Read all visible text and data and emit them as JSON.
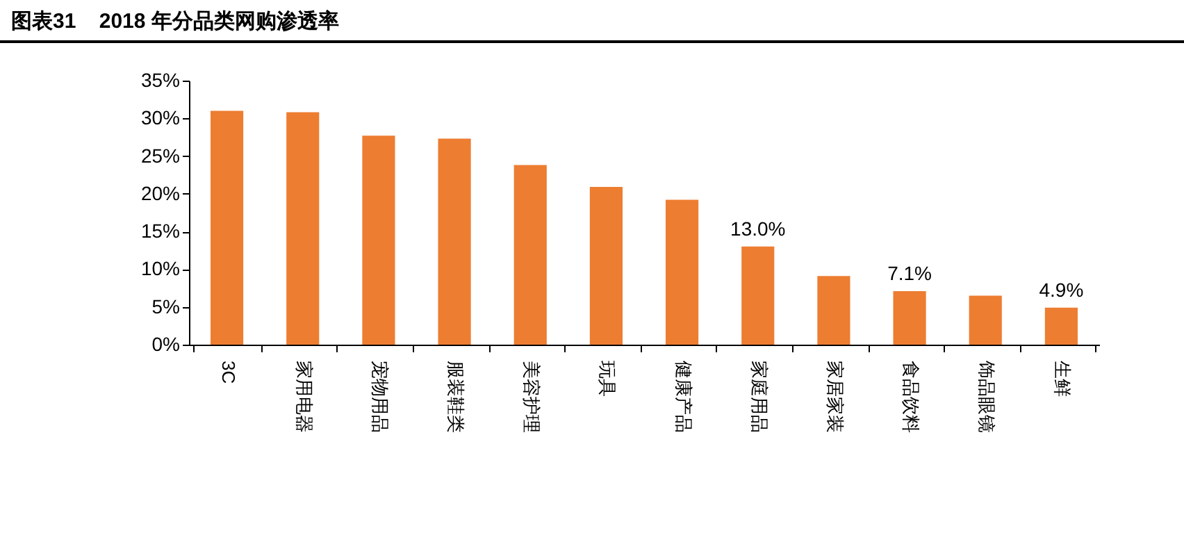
{
  "chart_data": {
    "type": "bar",
    "title": "图表31    2018 年分品类网购渗透率",
    "categories": [
      "3C",
      "家用电器",
      "宠物用品",
      "服装鞋类",
      "美容护理",
      "玩具",
      "健康产品",
      "家庭用品",
      "家居家装",
      "食品饮料",
      "饰品眼镜",
      "生鲜"
    ],
    "values": [
      31.0,
      30.8,
      27.7,
      27.3,
      23.8,
      20.9,
      19.2,
      13.0,
      9.1,
      7.1,
      6.5,
      4.9
    ],
    "value_labels": [
      null,
      null,
      null,
      null,
      null,
      null,
      null,
      "13.0%",
      null,
      "7.1%",
      null,
      "4.9%"
    ],
    "color": "#ed7d31",
    "ylim": [
      0,
      35
    ],
    "yticks": [
      {
        "value": 0,
        "label": "0%"
      },
      {
        "value": 5,
        "label": "5%"
      },
      {
        "value": 10,
        "label": "10%"
      },
      {
        "value": 15,
        "label": "15%"
      },
      {
        "value": 20,
        "label": "20%"
      },
      {
        "value": 25,
        "label": "25%"
      },
      {
        "value": 30,
        "label": "30%"
      },
      {
        "value": 35,
        "label": "35%"
      }
    ],
    "grid": false
  }
}
